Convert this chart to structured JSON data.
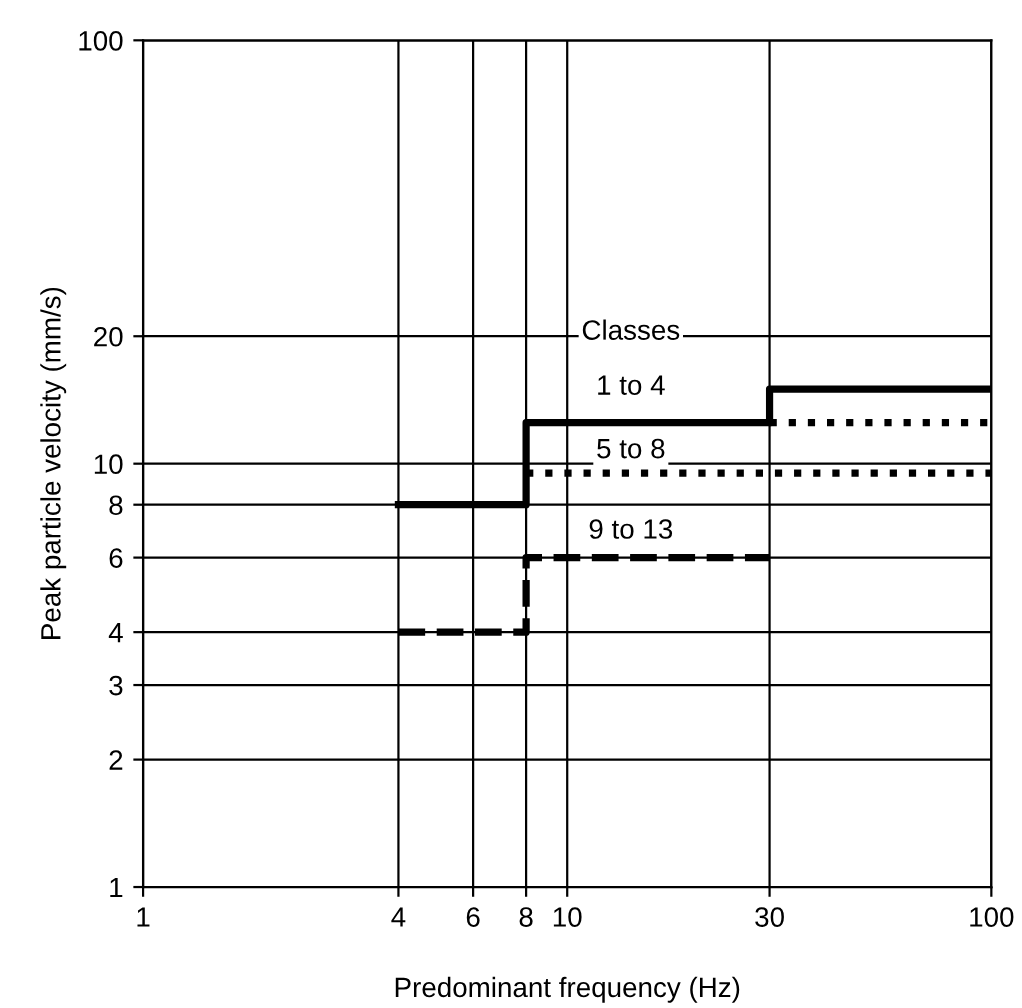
{
  "chart_data": {
    "type": "line",
    "xlabel": "Predominant frequency (Hz)",
    "ylabel": "Peak particle velocity (mm/s)",
    "log": "xy",
    "xlim": [
      1,
      100
    ],
    "ylim": [
      1,
      100
    ],
    "xticks": [
      1,
      4,
      6,
      8,
      10,
      30,
      100
    ],
    "yticks": [
      1,
      2,
      3,
      4,
      6,
      8,
      10,
      20,
      100
    ],
    "grid": true,
    "legend": false,
    "marker": "none",
    "series": [
      {
        "color": "#000000",
        "line_style": "solid",
        "x": [
          4,
          8,
          8,
          30,
          30,
          100
        ],
        "values": [
          8,
          8,
          12.5,
          12.5,
          15,
          15
        ]
      },
      {
        "color": "#000000",
        "line_style": "dotted",
        "x": [
          8,
          100
        ],
        "values": [
          9.5,
          9.5
        ]
      },
      {
        "color": "#000000",
        "line_style": "dotted",
        "x": [
          30,
          100
        ],
        "values": [
          12.5,
          12.5
        ]
      },
      {
        "color": "#000000",
        "line_style": "dashed",
        "x": [
          4,
          8,
          8,
          30
        ],
        "values": [
          4,
          4,
          6,
          6
        ]
      }
    ],
    "annotations": [
      "Classes",
      "1 to 4",
      "5 to 8",
      "9 to 13"
    ]
  }
}
